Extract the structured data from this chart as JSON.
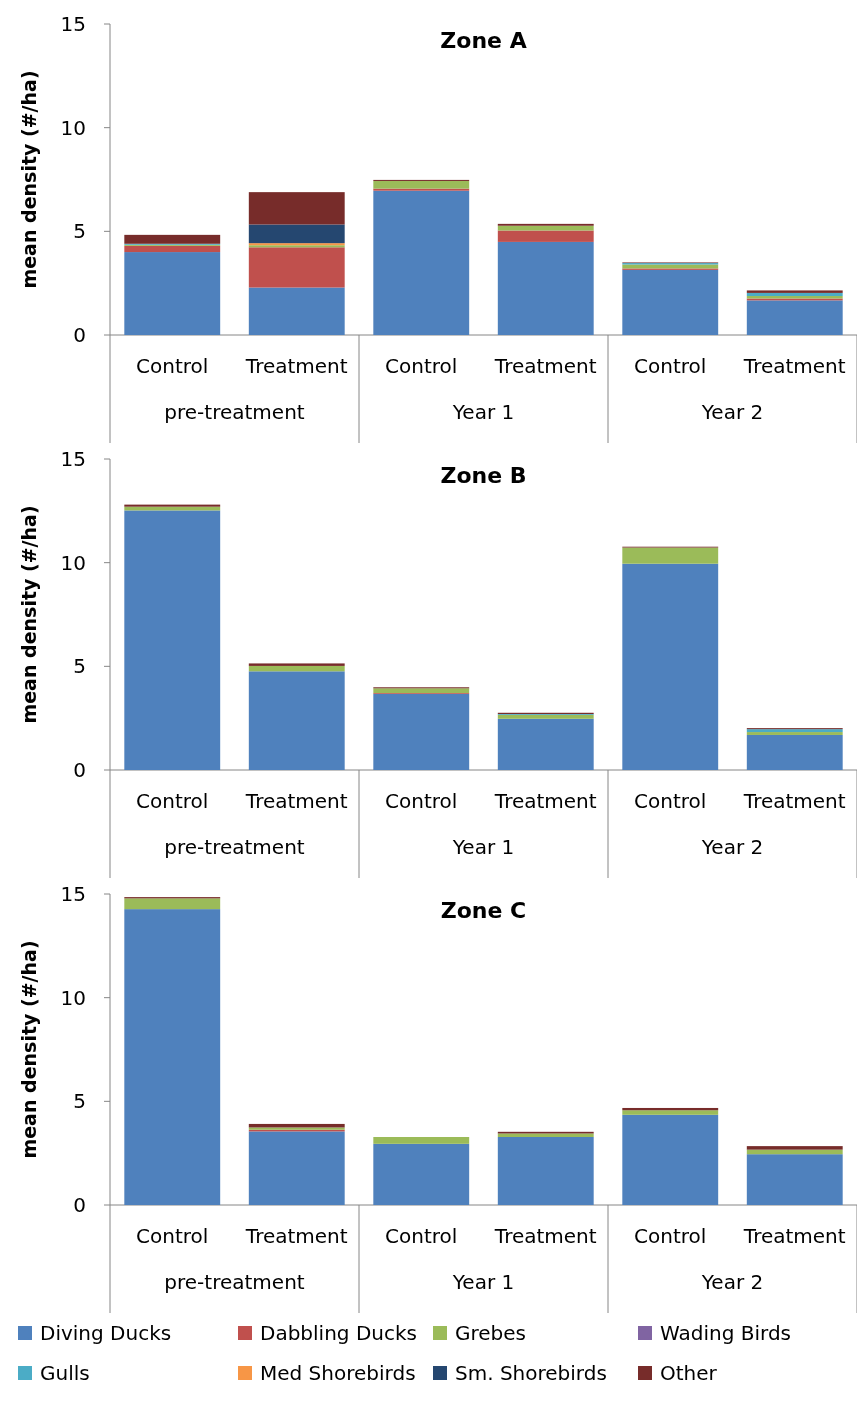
{
  "chart_data": [
    {
      "type": "bar",
      "stacked": true,
      "title": "Zone A",
      "ylabel": "mean density (#/ha)",
      "categories": [
        "Control",
        "Treatment",
        "Control",
        "Treatment",
        "Control",
        "Treatment"
      ],
      "annotations": [
        "pre-treatment",
        "Year 1",
        "Year 2"
      ],
      "ylim": [
        0,
        15
      ],
      "yticks": [
        0,
        5,
        10,
        15
      ],
      "series": [
        {
          "color": "#4f81bd",
          "values": [
            4.0,
            2.29,
            6.96,
            4.49,
            3.14,
            1.67
          ]
        },
        {
          "color": "#c0504d",
          "values": [
            0.3,
            1.94,
            0.1,
            0.55,
            0.07,
            0.09
          ]
        },
        {
          "color": "#9bbb59",
          "values": [
            0.05,
            0.1,
            0.37,
            0.23,
            0.19,
            0.12
          ]
        },
        {
          "color": "#8064a2",
          "values": [
            0,
            0,
            0,
            0,
            0,
            0
          ]
        },
        {
          "color": "#4bacc6",
          "values": [
            0.05,
            0,
            0,
            0,
            0.07,
            0.15
          ]
        },
        {
          "color": "#f79646",
          "values": [
            0,
            0.1,
            0,
            0,
            0,
            0
          ]
        },
        {
          "color": "#254770",
          "values": [
            0,
            0.9,
            0,
            0,
            0,
            0
          ]
        },
        {
          "color": "#772c2a",
          "values": [
            0.43,
            1.56,
            0.05,
            0.09,
            0.03,
            0.12
          ]
        }
      ]
    },
    {
      "type": "bar",
      "stacked": true,
      "title": "Zone B",
      "ylabel": "mean density (#/ha)",
      "categories": [
        "Control",
        "Treatment",
        "Control",
        "Treatment",
        "Control",
        "Treatment"
      ],
      "annotations": [
        "pre-treatment",
        "Year 1",
        "Year 2"
      ],
      "ylim": [
        0,
        15
      ],
      "yticks": [
        0,
        5,
        10,
        15
      ],
      "series": [
        {
          "color": "#4f81bd",
          "values": [
            12.52,
            4.76,
            3.67,
            2.47,
            9.95,
            1.69
          ]
        },
        {
          "color": "#c0504d",
          "values": [
            0,
            0,
            0.04,
            0,
            0,
            0
          ]
        },
        {
          "color": "#9bbb59",
          "values": [
            0.18,
            0.26,
            0.23,
            0.19,
            0.78,
            0.14
          ]
        },
        {
          "color": "#8064a2",
          "values": [
            0,
            0,
            0,
            0,
            0,
            0
          ]
        },
        {
          "color": "#4bacc6",
          "values": [
            0,
            0,
            0,
            0.04,
            0,
            0.14
          ]
        },
        {
          "color": "#f79646",
          "values": [
            0,
            0,
            0,
            0,
            0,
            0
          ]
        },
        {
          "color": "#254770",
          "values": [
            0,
            0,
            0,
            0,
            0,
            0
          ]
        },
        {
          "color": "#772c2a",
          "values": [
            0.1,
            0.12,
            0.05,
            0.06,
            0.04,
            0.05
          ]
        }
      ]
    },
    {
      "type": "bar",
      "stacked": true,
      "title": "Zone C",
      "ylabel": "mean density (#/ha)",
      "categories": [
        "Control",
        "Treatment",
        "Control",
        "Treatment",
        "Control",
        "Treatment"
      ],
      "annotations": [
        "pre-treatment",
        "Year 1",
        "Year 2"
      ],
      "ylim": [
        0,
        15
      ],
      "yticks": [
        0,
        5,
        10,
        15
      ],
      "legend": "bottom",
      "series": [
        {
          "name": "Diving Ducks",
          "color": "#4f81bd",
          "values": [
            14.27,
            3.55,
            2.95,
            3.28,
            4.35,
            2.45
          ]
        },
        {
          "name": "Dabbling Ducks",
          "color": "#c0504d",
          "values": [
            0,
            0.08,
            0,
            0,
            0,
            0
          ]
        },
        {
          "name": "Grebes",
          "color": "#9bbb59",
          "values": [
            0.52,
            0.11,
            0.33,
            0.17,
            0.22,
            0.22
          ]
        },
        {
          "name": "Wading Birds",
          "color": "#8064a2",
          "values": [
            0,
            0,
            0,
            0,
            0,
            0
          ]
        },
        {
          "name": "Gulls",
          "color": "#4bacc6",
          "values": [
            0,
            0,
            0,
            0,
            0,
            0
          ]
        },
        {
          "name": "Med Shorebirds",
          "color": "#f79646",
          "values": [
            0,
            0,
            0,
            0,
            0,
            0
          ]
        },
        {
          "name": "Sm. Shorebirds",
          "color": "#254770",
          "values": [
            0,
            0,
            0,
            0,
            0,
            0
          ]
        },
        {
          "name": "Other",
          "color": "#772c2a",
          "values": [
            0.06,
            0.17,
            0,
            0.08,
            0.11,
            0.17
          ]
        }
      ]
    }
  ]
}
